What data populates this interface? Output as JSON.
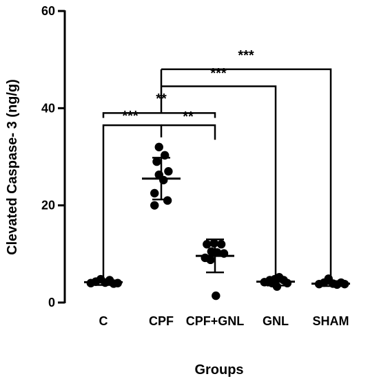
{
  "chart_data": {
    "type": "scatter",
    "xlabel": "Groups",
    "ylabel": "Clevated Caspase- 3 (ng/g)",
    "ylim": [
      0,
      60
    ],
    "yticks": [
      0,
      20,
      40,
      60
    ],
    "categories": [
      "C",
      "CPF",
      "CPF+GNL",
      "GNL",
      "SHAM"
    ],
    "groups": [
      {
        "name": "C",
        "mean": 4.2,
        "sd_low": 3.6,
        "sd_high": 4.8,
        "points": [
          {
            "x": -0.28,
            "y": 4.0
          },
          {
            "x": -0.17,
            "y": 4.3
          },
          {
            "x": -0.06,
            "y": 4.8
          },
          {
            "x": 0.04,
            "y": 4.1
          },
          {
            "x": 0.14,
            "y": 4.6
          },
          {
            "x": 0.23,
            "y": 3.9
          },
          {
            "x": 0.32,
            "y": 4.0
          }
        ]
      },
      {
        "name": "CPF",
        "mean": 25.5,
        "sd_low": 21.2,
        "sd_high": 29.8,
        "points": [
          {
            "x": -0.05,
            "y": 32.0
          },
          {
            "x": -0.1,
            "y": 29.0
          },
          {
            "x": 0.08,
            "y": 30.3
          },
          {
            "x": -0.05,
            "y": 26.3
          },
          {
            "x": 0.16,
            "y": 27.0
          },
          {
            "x": 0.05,
            "y": 25.2
          },
          {
            "x": -0.15,
            "y": 22.5
          },
          {
            "x": 0.14,
            "y": 21.0
          },
          {
            "x": -0.15,
            "y": 20.0
          }
        ]
      },
      {
        "name": "CPF+GNL",
        "mean": 9.6,
        "sd_low": 6.2,
        "sd_high": 13.0,
        "points": [
          {
            "x": -0.18,
            "y": 12.0
          },
          {
            "x": -0.02,
            "y": 12.2
          },
          {
            "x": 0.14,
            "y": 12.0
          },
          {
            "x": -0.08,
            "y": 10.5
          },
          {
            "x": 0.05,
            "y": 10.3
          },
          {
            "x": 0.2,
            "y": 10.1
          },
          {
            "x": -0.22,
            "y": 9.2
          },
          {
            "x": -0.1,
            "y": 8.8
          },
          {
            "x": 0.02,
            "y": 1.4
          }
        ]
      },
      {
        "name": "GNL",
        "mean": 4.3,
        "sd_low": 3.5,
        "sd_high": 5.1,
        "points": [
          {
            "x": -0.25,
            "y": 4.2
          },
          {
            "x": -0.13,
            "y": 4.6
          },
          {
            "x": -0.02,
            "y": 4.8
          },
          {
            "x": 0.08,
            "y": 5.2
          },
          {
            "x": 0.18,
            "y": 4.6
          },
          {
            "x": 0.26,
            "y": 4.0
          },
          {
            "x": -0.08,
            "y": 4.0
          },
          {
            "x": 0.03,
            "y": 3.3
          }
        ]
      },
      {
        "name": "SHAM",
        "mean": 3.9,
        "sd_low": 3.4,
        "sd_high": 4.4,
        "points": [
          {
            "x": -0.26,
            "y": 3.8
          },
          {
            "x": -0.15,
            "y": 4.1
          },
          {
            "x": -0.05,
            "y": 4.9
          },
          {
            "x": 0.05,
            "y": 3.9
          },
          {
            "x": 0.14,
            "y": 3.7
          },
          {
            "x": 0.23,
            "y": 4.1
          },
          {
            "x": 0.31,
            "y": 3.8
          }
        ]
      }
    ],
    "significance": [
      {
        "from": 0,
        "to": 1,
        "y": 39.0,
        "drops": [
          4.8,
          36.5
        ],
        "label": "***"
      },
      {
        "from": 1,
        "to": 2,
        "y": 36.5,
        "drops": [
          33.5,
          36.5
        ],
        "label": "**"
      },
      {
        "from": 0,
        "to": 2,
        "y": 39.0,
        "drops": [
          39.0,
          36.5
        ],
        "label": "**",
        "label_pos": "upper-left",
        "parent_center": true
      },
      {
        "from": 1,
        "to": 3,
        "y": 44.5,
        "drops": [
          41.0,
          5.0
        ],
        "label": "***",
        "start_at_parent": true
      },
      {
        "from": 1,
        "to": 4,
        "y": 48.0,
        "drops": [
          44.5,
          5.0
        ],
        "label": "***",
        "start_at_parent": true
      }
    ]
  }
}
